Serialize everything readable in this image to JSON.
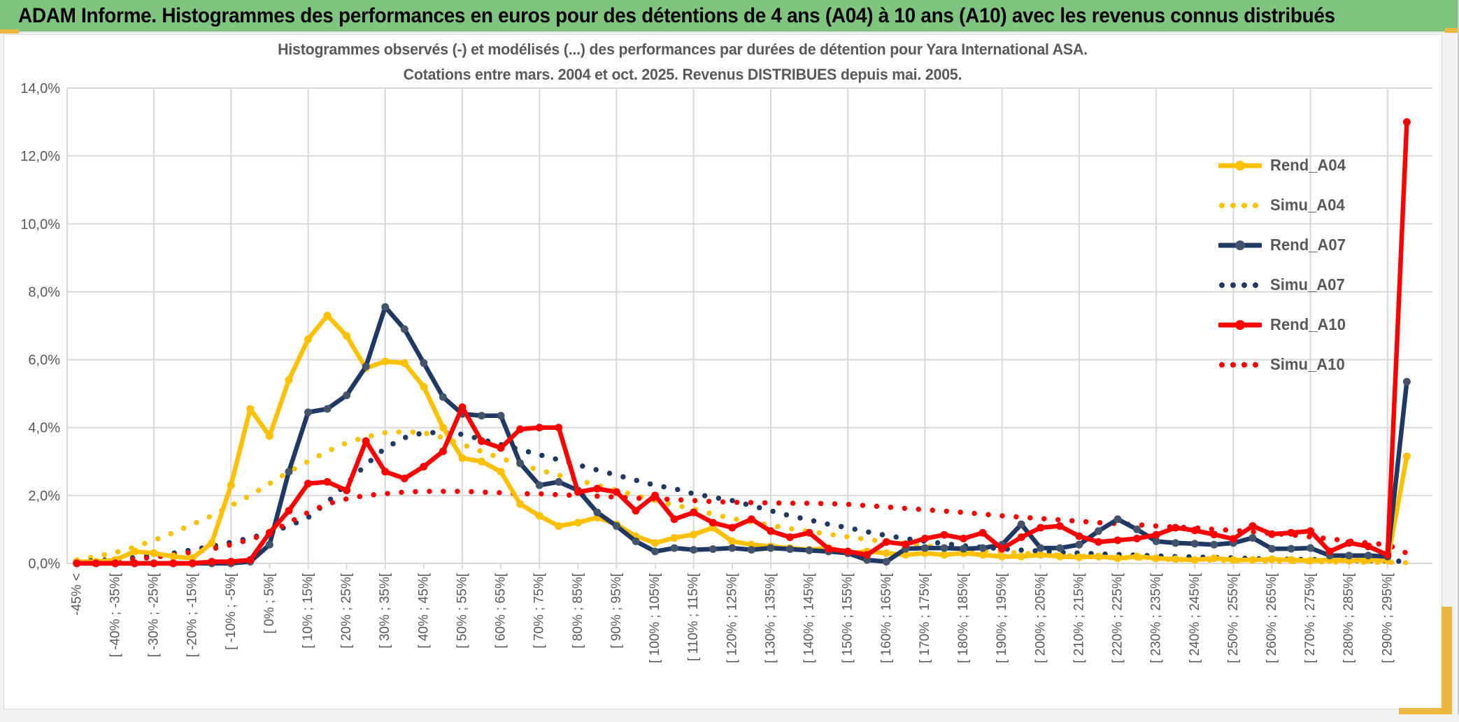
{
  "banner": {
    "title": "ADAM Informe. Histogrammes des performances en euros pour des détentions de 4 ans (A04) à 10 ans (A10) avec les revenus connus distribués",
    "bg_color": "#7FC57F",
    "accent_color": "#EDB63E"
  },
  "chart": {
    "title_line1": "Histogrammes observés (-) et modélisés (...) des performances par durées de détention pour Yara International ASA.",
    "title_line2": "Cotations entre mars. 2004 et oct. 2025. Revenus DISTRIBUES depuis mai. 2005.",
    "text_color": "#595959",
    "grid_color": "#D9D9D9",
    "plot_bg": "#FFFFFF"
  },
  "chart_data": {
    "type": "line",
    "title": "Histogrammes observés (-) et modélisés (...) des performances par durées de détention pour Yara International ASA. Cotations entre mars. 2004 et oct. 2025. Revenus DISTRIBUES depuis mai. 2005.",
    "ylabel": "",
    "xlabel": "",
    "ylim": [
      0,
      14
    ],
    "y_tick_labels": [
      "0,0%",
      "2,0%",
      "4,0%",
      "6,0%",
      "8,0%",
      "10,0%",
      "12,0%",
      "14,0%"
    ],
    "grid": true,
    "legend_position": "right",
    "n_bins": 70,
    "bin_width_pct": 5,
    "first_bin": "-45% <",
    "x_tick_labels": [
      "-45% <",
      "[ -40% ; -35%[",
      "[ -30% ; -25%[",
      "[ -20% ; -15%[",
      "[ -10% ; -5%[",
      "[ 0% ; 5%[",
      "[ 10% ; 15%[",
      "[ 20% ; 25%[",
      "[ 30% ; 35%[",
      "[ 40% ; 45%[",
      "[ 50% ; 55%[",
      "[ 60% ; 65%[",
      "[ 70% ; 75%[",
      "[ 80% ; 85%[",
      "[ 90% ; 95%[",
      "[ 100% ; 105%[",
      "[ 110% ; 115%[",
      "[ 120% ; 125%[",
      "[ 130% ; 135%[",
      "[ 140% ; 145%[",
      "[ 150% ; 155%[",
      "[ 160% ; 165%[",
      "[ 170% ; 175%[",
      "[ 180% ; 185%[",
      "[ 190% ; 195%[",
      "[ 200% ; 205%[",
      "[ 210% ; 215%[",
      "[ 220% ; 225%[",
      "[ 230% ; 235%[",
      "[ 240% ; 245%[",
      "[ 250% ; 255%[",
      "[ 260% ; 265%[",
      "[ 270% ; 275%[",
      "[ 280% ; 285%[",
      "[ 290% ; 295%["
    ],
    "series": [
      {
        "name": "Rend_A04",
        "color": "#FFC000",
        "marker_color": "#FFC000",
        "style": "solid",
        "values": [
          0.05,
          0.05,
          0.1,
          0.35,
          0.3,
          0.2,
          0.15,
          0.6,
          2.3,
          4.55,
          3.75,
          5.4,
          6.6,
          7.3,
          6.7,
          5.75,
          5.95,
          5.9,
          5.2,
          4.0,
          3.1,
          3.0,
          2.7,
          1.75,
          1.4,
          1.1,
          1.2,
          1.35,
          1.15,
          0.8,
          0.6,
          0.75,
          0.85,
          1.05,
          0.65,
          0.55,
          0.5,
          0.45,
          0.4,
          0.45,
          0.3,
          0.35,
          0.3,
          0.25,
          0.3,
          0.25,
          0.3,
          0.25,
          0.2,
          0.2,
          0.25,
          0.2,
          0.18,
          0.2,
          0.15,
          0.2,
          0.15,
          0.12,
          0.1,
          0.15,
          0.1,
          0.1,
          0.12,
          0.1,
          0.08,
          0.1,
          0.08,
          0.1,
          0.08,
          3.15
        ]
      },
      {
        "name": "Simu_A04",
        "color": "#FFC000",
        "marker_color": "#FFC000",
        "style": "dotted",
        "values": [
          0.1,
          0.2,
          0.32,
          0.48,
          0.68,
          0.9,
          1.15,
          1.4,
          1.7,
          2.0,
          2.35,
          2.7,
          3.0,
          3.3,
          3.55,
          3.72,
          3.85,
          3.88,
          3.85,
          3.7,
          3.5,
          3.3,
          3.1,
          2.9,
          2.75,
          2.6,
          2.45,
          2.3,
          2.15,
          2.0,
          1.85,
          1.72,
          1.6,
          1.45,
          1.32,
          1.22,
          1.12,
          1.02,
          0.94,
          0.86,
          0.78,
          0.7,
          0.64,
          0.58,
          0.52,
          0.47,
          0.42,
          0.38,
          0.34,
          0.3,
          0.27,
          0.24,
          0.21,
          0.19,
          0.17,
          0.15,
          0.13,
          0.11,
          0.1,
          0.09,
          0.08,
          0.07,
          0.06,
          0.05,
          0.05,
          0.04,
          0.04,
          0.03,
          0.03,
          0.02
        ]
      },
      {
        "name": "Rend_A07",
        "color": "#1F3864",
        "marker_color": "#44546A",
        "style": "solid",
        "values": [
          0,
          0,
          0,
          0,
          0,
          0,
          0,
          0,
          0,
          0.05,
          0.55,
          2.7,
          4.45,
          4.55,
          4.95,
          5.8,
          7.55,
          6.9,
          5.9,
          4.9,
          4.4,
          4.35,
          4.35,
          2.95,
          2.3,
          2.4,
          2.15,
          1.5,
          1.1,
          0.65,
          0.35,
          0.45,
          0.4,
          0.42,
          0.45,
          0.4,
          0.45,
          0.42,
          0.38,
          0.35,
          0.3,
          0.1,
          0.05,
          0.43,
          0.45,
          0.45,
          0.43,
          0.45,
          0.55,
          1.15,
          0.45,
          0.45,
          0.55,
          0.95,
          1.3,
          1.0,
          0.65,
          0.6,
          0.58,
          0.55,
          0.6,
          0.75,
          0.43,
          0.43,
          0.45,
          0.23,
          0.23,
          0.23,
          0.2,
          5.35
        ]
      },
      {
        "name": "Simu_A07",
        "color": "#1F3864",
        "marker_color": "#1F3864",
        "style": "dotted",
        "values": [
          0.05,
          0.08,
          0.12,
          0.17,
          0.23,
          0.3,
          0.4,
          0.5,
          0.62,
          0.75,
          0.9,
          1.1,
          1.35,
          1.8,
          2.35,
          2.9,
          3.4,
          3.7,
          3.85,
          3.85,
          3.8,
          3.65,
          3.5,
          3.35,
          3.2,
          3.05,
          2.9,
          2.75,
          2.6,
          2.45,
          2.3,
          2.2,
          2.05,
          1.95,
          1.85,
          1.7,
          1.55,
          1.4,
          1.28,
          1.15,
          1.05,
          0.93,
          0.82,
          0.73,
          0.65,
          0.58,
          0.52,
          0.47,
          0.43,
          0.39,
          0.36,
          0.33,
          0.3,
          0.28,
          0.26,
          0.24,
          0.22,
          0.2,
          0.19,
          0.17,
          0.16,
          0.14,
          0.13,
          0.12,
          0.11,
          0.1,
          0.09,
          0.08,
          0.07,
          0.06
        ]
      },
      {
        "name": "Rend_A10",
        "color": "#FF0000",
        "marker_color": "#FF0000",
        "style": "solid",
        "values": [
          0,
          0,
          0,
          0,
          0,
          0,
          0,
          0.05,
          0.05,
          0.1,
          0.9,
          1.55,
          2.35,
          2.4,
          2.15,
          3.6,
          2.7,
          2.5,
          2.85,
          3.3,
          4.6,
          3.6,
          3.4,
          3.95,
          4.0,
          4.0,
          2.1,
          2.2,
          2.1,
          1.55,
          2.0,
          1.3,
          1.5,
          1.2,
          1.05,
          1.3,
          0.95,
          0.77,
          0.9,
          0.43,
          0.35,
          0.25,
          0.63,
          0.56,
          0.73,
          0.84,
          0.73,
          0.9,
          0.43,
          0.77,
          1.05,
          1.1,
          0.8,
          0.63,
          0.68,
          0.73,
          0.84,
          1.05,
          0.97,
          0.85,
          0.72,
          1.1,
          0.86,
          0.9,
          0.95,
          0.35,
          0.6,
          0.5,
          0.25,
          13.0
        ]
      },
      {
        "name": "Simu_A10",
        "color": "#FF0000",
        "marker_color": "#FF0000",
        "style": "dotted",
        "values": [
          0.02,
          0.05,
          0.08,
          0.12,
          0.18,
          0.25,
          0.33,
          0.42,
          0.55,
          0.7,
          0.9,
          1.2,
          1.5,
          1.75,
          1.9,
          2.0,
          2.05,
          2.1,
          2.12,
          2.12,
          2.12,
          2.1,
          2.08,
          2.05,
          2.05,
          2.02,
          2.0,
          1.98,
          1.95,
          1.92,
          1.9,
          1.88,
          1.85,
          1.82,
          1.8,
          1.79,
          1.78,
          1.77,
          1.77,
          1.76,
          1.74,
          1.7,
          1.66,
          1.62,
          1.58,
          1.54,
          1.5,
          1.45,
          1.4,
          1.36,
          1.32,
          1.28,
          1.24,
          1.2,
          1.17,
          1.14,
          1.1,
          1.07,
          1.05,
          1.0,
          0.97,
          0.93,
          0.88,
          0.84,
          0.78,
          0.72,
          0.66,
          0.6,
          0.55,
          0.3
        ]
      }
    ]
  }
}
